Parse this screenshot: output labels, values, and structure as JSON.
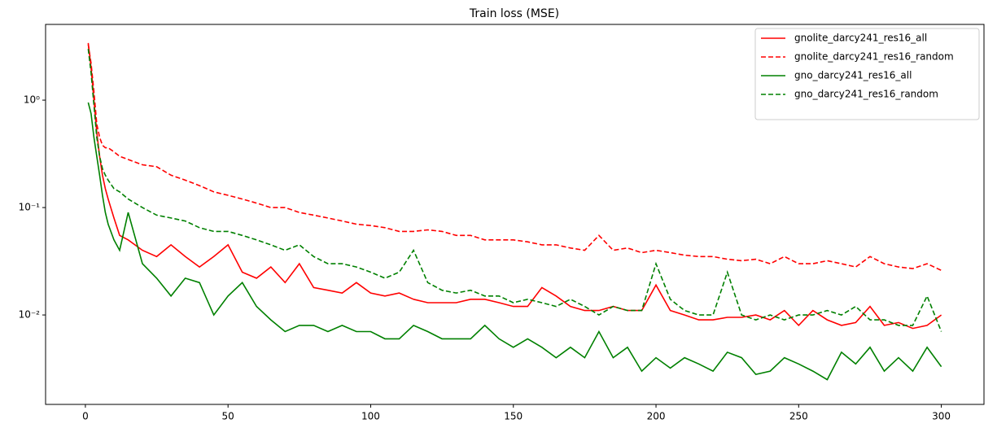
{
  "chart_data": {
    "type": "line",
    "title": "Train loss (MSE)",
    "x": [
      1,
      2,
      3,
      4,
      5,
      6,
      7,
      8,
      10,
      12,
      15,
      20,
      25,
      30,
      35,
      40,
      45,
      50,
      55,
      60,
      65,
      70,
      75,
      80,
      85,
      90,
      95,
      100,
      105,
      110,
      115,
      120,
      125,
      130,
      135,
      140,
      145,
      150,
      155,
      160,
      165,
      170,
      175,
      180,
      185,
      190,
      195,
      200,
      205,
      210,
      215,
      220,
      225,
      230,
      235,
      240,
      245,
      250,
      255,
      260,
      265,
      270,
      275,
      280,
      285,
      290,
      295,
      300
    ],
    "series": [
      {
        "name": "gnolite_darcy241_res16_all",
        "color": "#ff0000",
        "linestyle": "solid",
        "values": [
          3.4,
          2.0,
          1.0,
          0.5,
          0.3,
          0.2,
          0.15,
          0.12,
          0.08,
          0.055,
          0.05,
          0.04,
          0.035,
          0.045,
          0.035,
          0.028,
          0.035,
          0.045,
          0.025,
          0.022,
          0.028,
          0.02,
          0.03,
          0.018,
          0.017,
          0.016,
          0.02,
          0.016,
          0.015,
          0.016,
          0.014,
          0.013,
          0.013,
          0.013,
          0.014,
          0.014,
          0.013,
          0.012,
          0.012,
          0.018,
          0.015,
          0.012,
          0.011,
          0.011,
          0.012,
          0.011,
          0.011,
          0.019,
          0.011,
          0.01,
          0.009,
          0.009,
          0.0095,
          0.0095,
          0.01,
          0.009,
          0.011,
          0.008,
          0.011,
          0.009,
          0.008,
          0.0085,
          0.012,
          0.008,
          0.0085,
          0.0075,
          0.008,
          0.01
        ]
      },
      {
        "name": "gnolite_darcy241_res16_random",
        "color": "#ff0000",
        "linestyle": "dashed",
        "values": [
          3.3,
          2.2,
          1.2,
          0.6,
          0.45,
          0.38,
          0.36,
          0.36,
          0.33,
          0.3,
          0.28,
          0.25,
          0.24,
          0.2,
          0.18,
          0.16,
          0.14,
          0.13,
          0.12,
          0.11,
          0.1,
          0.1,
          0.09,
          0.085,
          0.08,
          0.075,
          0.07,
          0.068,
          0.065,
          0.06,
          0.06,
          0.062,
          0.06,
          0.055,
          0.055,
          0.05,
          0.05,
          0.05,
          0.048,
          0.045,
          0.045,
          0.042,
          0.04,
          0.055,
          0.04,
          0.042,
          0.038,
          0.04,
          0.038,
          0.036,
          0.035,
          0.035,
          0.033,
          0.032,
          0.033,
          0.03,
          0.035,
          0.03,
          0.03,
          0.032,
          0.03,
          0.028,
          0.035,
          0.03,
          0.028,
          0.027,
          0.03,
          0.026
        ]
      },
      {
        "name": "gno_darcy241_res16_all",
        "color": "#008000",
        "linestyle": "solid",
        "values": [
          0.95,
          0.75,
          0.45,
          0.3,
          0.2,
          0.13,
          0.09,
          0.07,
          0.05,
          0.04,
          0.09,
          0.03,
          0.022,
          0.015,
          0.022,
          0.02,
          0.01,
          0.015,
          0.02,
          0.012,
          0.009,
          0.007,
          0.008,
          0.008,
          0.007,
          0.008,
          0.007,
          0.007,
          0.006,
          0.006,
          0.008,
          0.007,
          0.006,
          0.006,
          0.006,
          0.008,
          0.006,
          0.005,
          0.006,
          0.005,
          0.004,
          0.005,
          0.004,
          0.007,
          0.004,
          0.005,
          0.003,
          0.004,
          0.0032,
          0.004,
          0.0035,
          0.003,
          0.0045,
          0.004,
          0.0028,
          0.003,
          0.004,
          0.0035,
          0.003,
          0.0025,
          0.0045,
          0.0035,
          0.005,
          0.003,
          0.004,
          0.003,
          0.005,
          0.0033
        ]
      },
      {
        "name": "gno_darcy241_res16_random",
        "color": "#008000",
        "linestyle": "dashed",
        "values": [
          3.0,
          1.8,
          0.9,
          0.45,
          0.3,
          0.23,
          0.2,
          0.18,
          0.15,
          0.14,
          0.12,
          0.1,
          0.085,
          0.08,
          0.075,
          0.065,
          0.06,
          0.06,
          0.055,
          0.05,
          0.045,
          0.04,
          0.045,
          0.035,
          0.03,
          0.03,
          0.028,
          0.025,
          0.022,
          0.025,
          0.04,
          0.02,
          0.017,
          0.016,
          0.017,
          0.015,
          0.015,
          0.013,
          0.014,
          0.013,
          0.012,
          0.014,
          0.012,
          0.01,
          0.012,
          0.011,
          0.011,
          0.03,
          0.014,
          0.011,
          0.01,
          0.01,
          0.025,
          0.01,
          0.009,
          0.01,
          0.009,
          0.01,
          0.01,
          0.011,
          0.01,
          0.012,
          0.009,
          0.009,
          0.008,
          0.008,
          0.015,
          0.007
        ]
      }
    ],
    "xlim": [
      -13.95,
      314.95
    ],
    "xticks": [
      0,
      50,
      100,
      150,
      200,
      250,
      300
    ],
    "ylim": [
      0.00147,
      5.07
    ],
    "yscale": "log",
    "yticks": [
      {
        "value": 1,
        "label": "10⁰"
      },
      {
        "value": 0.1,
        "label": "10⁻¹"
      },
      {
        "value": 0.01,
        "label": "10⁻²"
      }
    ],
    "legend": "upper right"
  }
}
